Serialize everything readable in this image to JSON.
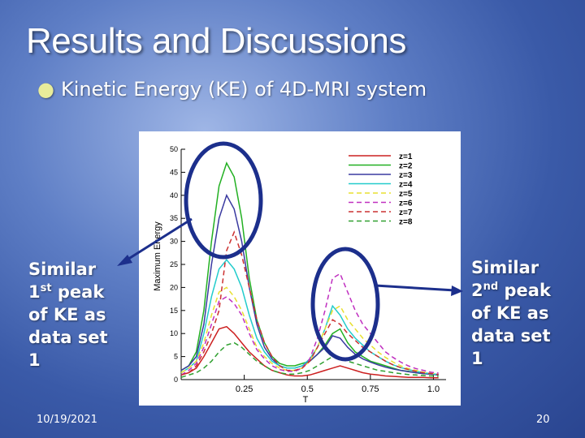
{
  "slide": {
    "title": "Results and Discussions",
    "bullet": "Kinetic Energy (KE) of 4D-MRI system",
    "left_note": {
      "line1": "Similar",
      "ordinal": "1",
      "ordinal_sup": "st",
      "peak": " peak",
      "line3": "of KE as",
      "line4": "data set",
      "line5": "1"
    },
    "right_note": {
      "line1": "Similar",
      "ordinal": "2",
      "ordinal_sup": "nd",
      "peak": " peak",
      "line3": "of KE as",
      "line4": "data set",
      "line5": "1"
    },
    "date": "10/19/2021",
    "page": "20",
    "colors": {
      "circle": "#1c2f8c",
      "arrow": "#1c2f8c",
      "bullet": "#e8ec9a"
    }
  },
  "chart_data": {
    "type": "line",
    "xlabel": "T",
    "ylabel": "Maximum Energy",
    "xlim": [
      0,
      1.05
    ],
    "ylim": [
      0,
      50
    ],
    "xticks": [
      0.25,
      0.5,
      0.75,
      1.0
    ],
    "xtick_labels": [
      "0.25",
      "0.5",
      "0.75",
      "1.0"
    ],
    "yticks": [
      0,
      5,
      10,
      15,
      20,
      25,
      30,
      35,
      40,
      45,
      50
    ],
    "grid": false,
    "legend_position": "top-right",
    "x": [
      0.0,
      0.03,
      0.06,
      0.09,
      0.12,
      0.15,
      0.18,
      0.21,
      0.24,
      0.27,
      0.3,
      0.33,
      0.36,
      0.39,
      0.42,
      0.45,
      0.48,
      0.51,
      0.54,
      0.57,
      0.6,
      0.63,
      0.66,
      0.69,
      0.72,
      0.75,
      0.78,
      0.81,
      0.84,
      0.87,
      0.9,
      0.93,
      0.96,
      0.99,
      1.02
    ],
    "series": [
      {
        "name": "z=1",
        "color": "#cc2020",
        "dash": false,
        "values": [
          1.0,
          1.5,
          2.5,
          5.0,
          8.0,
          11.0,
          11.5,
          10.0,
          8.0,
          6.0,
          4.5,
          3.0,
          2.0,
          1.5,
          1.0,
          0.8,
          0.8,
          1.0,
          1.5,
          2.0,
          2.5,
          3.0,
          2.5,
          2.0,
          1.5,
          1.2,
          1.0,
          0.8,
          0.7,
          0.6,
          0.5,
          0.5,
          0.5,
          0.4,
          0.4
        ]
      },
      {
        "name": "z=2",
        "color": "#22b022",
        "dash": false,
        "values": [
          2.0,
          3.0,
          6.0,
          15.0,
          30.0,
          42.0,
          47.0,
          44.0,
          35.0,
          22.0,
          13.0,
          8.0,
          5.0,
          3.5,
          3.0,
          3.0,
          3.5,
          4.0,
          5.5,
          7.5,
          10.0,
          11.0,
          8.0,
          6.0,
          5.0,
          4.0,
          3.5,
          3.0,
          2.5,
          2.0,
          1.8,
          1.5,
          1.3,
          1.2,
          1.0
        ]
      },
      {
        "name": "z=3",
        "color": "#3a3aa0",
        "dash": false,
        "values": [
          2.0,
          3.0,
          5.0,
          12.0,
          25.0,
          35.0,
          40.0,
          37.0,
          30.0,
          20.0,
          12.0,
          7.0,
          4.5,
          3.0,
          2.5,
          2.5,
          3.0,
          4.0,
          5.5,
          7.0,
          9.5,
          9.0,
          7.0,
          5.5,
          4.5,
          3.8,
          3.2,
          2.7,
          2.3,
          2.0,
          1.7,
          1.5,
          1.3,
          1.2,
          1.0
        ]
      },
      {
        "name": "z=4",
        "color": "#22cccc",
        "dash": false,
        "values": [
          1.5,
          2.5,
          4.0,
          10.0,
          18.0,
          24.0,
          26.0,
          24.0,
          20.0,
          14.0,
          9.0,
          6.0,
          4.0,
          3.0,
          2.5,
          2.5,
          3.0,
          4.5,
          7.0,
          11.0,
          16.0,
          14.0,
          11.0,
          9.0,
          7.5,
          6.0,
          5.0,
          4.0,
          3.2,
          2.6,
          2.2,
          1.8,
          1.5,
          1.3,
          1.1
        ]
      },
      {
        "name": "z=5",
        "color": "#e8e030",
        "dash": true,
        "values": [
          1.5,
          2.5,
          4.0,
          8.0,
          14.0,
          19.0,
          20.0,
          18.0,
          15.0,
          11.0,
          7.0,
          5.0,
          3.5,
          2.5,
          2.0,
          2.0,
          2.5,
          4.0,
          7.0,
          11.0,
          15.0,
          16.0,
          13.0,
          11.0,
          9.0,
          7.5,
          6.0,
          4.8,
          3.8,
          3.0,
          2.4,
          2.0,
          1.6,
          1.4,
          1.2
        ]
      },
      {
        "name": "z=6",
        "color": "#c030c0",
        "dash": true,
        "values": [
          1.0,
          2.0,
          3.5,
          7.0,
          12.0,
          17.0,
          18.0,
          16.5,
          14.0,
          10.0,
          6.5,
          4.5,
          3.0,
          2.2,
          1.8,
          1.8,
          2.5,
          4.5,
          9.0,
          15.0,
          22.0,
          23.0,
          19.0,
          15.0,
          12.0,
          10.0,
          8.0,
          6.0,
          4.8,
          3.8,
          3.0,
          2.4,
          2.0,
          1.6,
          1.4
        ]
      },
      {
        "name": "z=7",
        "color": "#cc3030",
        "dash": true,
        "values": [
          1.0,
          1.5,
          3.0,
          6.0,
          10.0,
          15.0,
          28.0,
          32.0,
          27.0,
          20.0,
          13.0,
          8.0,
          5.0,
          3.0,
          2.0,
          2.0,
          2.5,
          4.0,
          7.0,
          10.0,
          13.0,
          12.0,
          10.0,
          8.5,
          7.0,
          6.0,
          5.0,
          4.0,
          3.2,
          2.6,
          2.2,
          1.8,
          1.5,
          1.3,
          1.1
        ]
      },
      {
        "name": "z=8",
        "color": "#30a030",
        "dash": true,
        "values": [
          0.5,
          1.0,
          1.5,
          2.5,
          4.0,
          6.0,
          7.5,
          8.0,
          7.0,
          5.5,
          4.0,
          3.0,
          2.0,
          1.5,
          1.2,
          1.2,
          1.5,
          2.0,
          3.0,
          4.0,
          5.0,
          4.5,
          4.0,
          3.5,
          3.0,
          2.5,
          2.0,
          1.8,
          1.5,
          1.3,
          1.1,
          1.0,
          0.9,
          0.8,
          0.7
        ]
      }
    ]
  }
}
